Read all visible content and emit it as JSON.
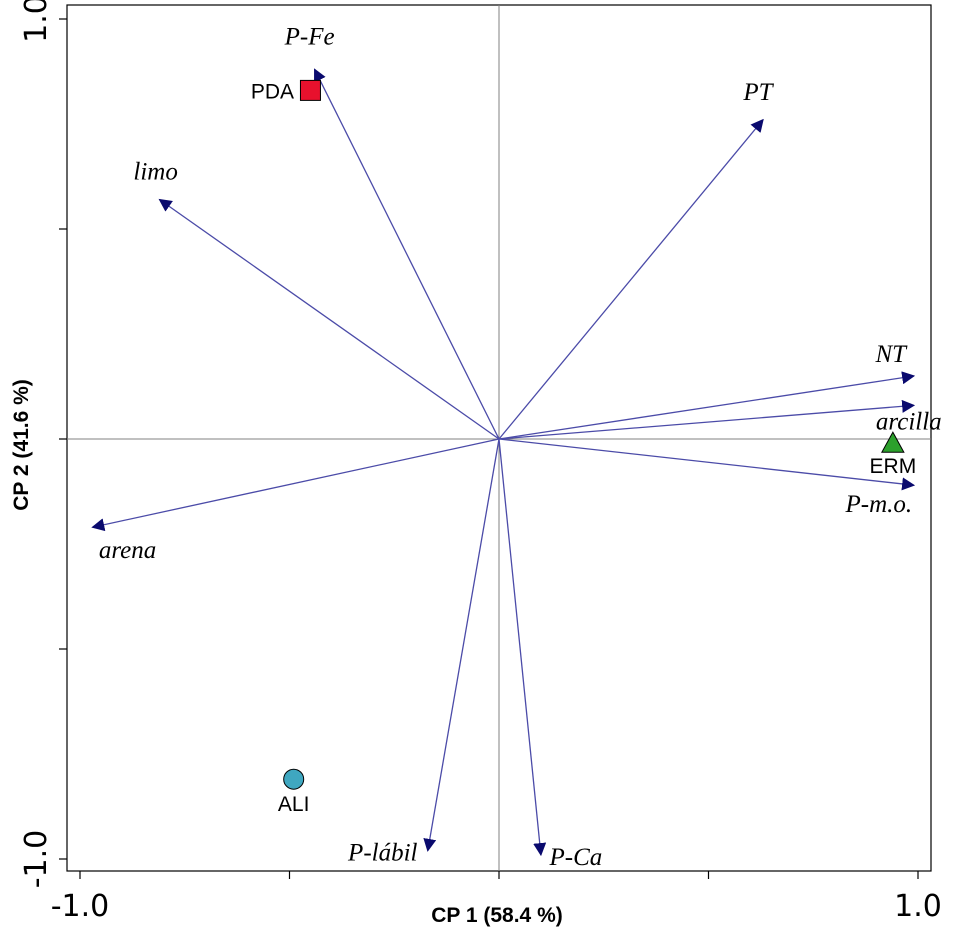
{
  "chart_data": {
    "type": "scatter",
    "title": "",
    "xlabel": "CP 1 (58.4 %)",
    "ylabel": "CP 2 (41.6 %)",
    "xlim": [
      -1.0,
      1.0
    ],
    "ylim": [
      -1.0,
      1.0
    ],
    "x_tick_labels": [
      "-1.0",
      "1.0"
    ],
    "y_tick_labels": [
      "1.0",
      "-1.0"
    ],
    "grid": false,
    "reference_lines": [
      0,
      0
    ],
    "vectors": [
      {
        "name": "P-Fe",
        "x": -0.44,
        "y": 0.88
      },
      {
        "name": "PT",
        "x": 0.63,
        "y": 0.76
      },
      {
        "name": "limo",
        "x": -0.81,
        "y": 0.57
      },
      {
        "name": "NT",
        "x": 0.99,
        "y": 0.15
      },
      {
        "name": "arcilla",
        "x": 0.99,
        "y": 0.08
      },
      {
        "name": "P-m.o.",
        "x": 0.99,
        "y": -0.11
      },
      {
        "name": "arena",
        "x": -0.97,
        "y": -0.21
      },
      {
        "name": "P-lábil",
        "x": -0.17,
        "y": -0.98
      },
      {
        "name": "P-Ca",
        "x": 0.1,
        "y": -0.99
      }
    ],
    "sites": [
      {
        "name": "PDA",
        "x": -0.45,
        "y": 0.83,
        "marker": "square",
        "color": "#e8112d"
      },
      {
        "name": "ERM",
        "x": 0.94,
        "y": -0.01,
        "marker": "triangle",
        "color": "#2ca02c"
      },
      {
        "name": "ALI",
        "x": -0.49,
        "y": -0.81,
        "marker": "circle",
        "color": "#3fa7c0"
      }
    ],
    "vector_color": "#4b4ba8",
    "arrowhead_color": "#0a0a6e"
  }
}
